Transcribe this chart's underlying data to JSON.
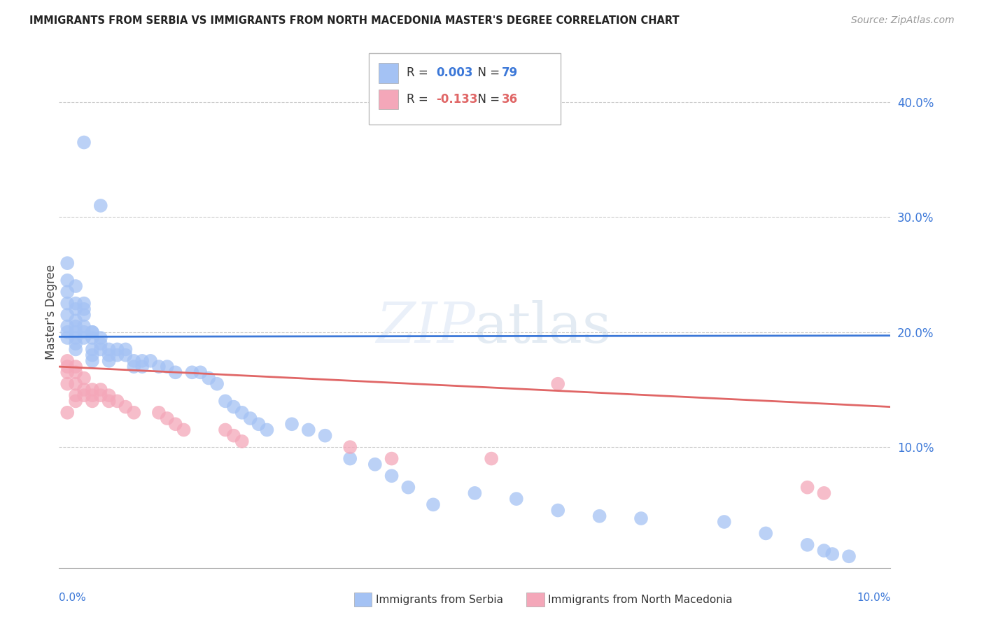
{
  "title": "IMMIGRANTS FROM SERBIA VS IMMIGRANTS FROM NORTH MACEDONIA MASTER'S DEGREE CORRELATION CHART",
  "source": "Source: ZipAtlas.com",
  "ylabel": "Master's Degree",
  "serbia_color": "#a4c2f4",
  "macedonia_color": "#f4a7b9",
  "serbia_line_color": "#3c78d8",
  "macedonia_line_color": "#e06666",
  "xlim": [
    0.0,
    0.1
  ],
  "ylim": [
    -0.005,
    0.44
  ],
  "ytick_vals": [
    0.1,
    0.2,
    0.3,
    0.4
  ],
  "ytick_labels": [
    "10.0%",
    "20.0%",
    "30.0%",
    "40.0%"
  ],
  "watermark_text": "ZIPatlas",
  "serbia_x": [
    0.003,
    0.005,
    0.001,
    0.001,
    0.001,
    0.001,
    0.001,
    0.001,
    0.001,
    0.001,
    0.002,
    0.002,
    0.002,
    0.002,
    0.002,
    0.002,
    0.002,
    0.002,
    0.002,
    0.003,
    0.003,
    0.003,
    0.003,
    0.003,
    0.003,
    0.004,
    0.004,
    0.004,
    0.004,
    0.004,
    0.004,
    0.005,
    0.005,
    0.005,
    0.006,
    0.006,
    0.006,
    0.007,
    0.007,
    0.008,
    0.008,
    0.009,
    0.009,
    0.01,
    0.01,
    0.011,
    0.012,
    0.013,
    0.014,
    0.016,
    0.017,
    0.018,
    0.019,
    0.02,
    0.021,
    0.022,
    0.023,
    0.024,
    0.025,
    0.028,
    0.03,
    0.032,
    0.035,
    0.038,
    0.04,
    0.042,
    0.045,
    0.05,
    0.055,
    0.06,
    0.065,
    0.07,
    0.08,
    0.085,
    0.09,
    0.092,
    0.093,
    0.095
  ],
  "serbia_y": [
    0.365,
    0.31,
    0.26,
    0.245,
    0.235,
    0.225,
    0.215,
    0.205,
    0.2,
    0.195,
    0.24,
    0.225,
    0.22,
    0.21,
    0.205,
    0.2,
    0.195,
    0.19,
    0.185,
    0.225,
    0.22,
    0.215,
    0.205,
    0.2,
    0.195,
    0.2,
    0.2,
    0.195,
    0.185,
    0.18,
    0.175,
    0.195,
    0.19,
    0.185,
    0.185,
    0.18,
    0.175,
    0.185,
    0.18,
    0.185,
    0.18,
    0.175,
    0.17,
    0.175,
    0.17,
    0.175,
    0.17,
    0.17,
    0.165,
    0.165,
    0.165,
    0.16,
    0.155,
    0.14,
    0.135,
    0.13,
    0.125,
    0.12,
    0.115,
    0.12,
    0.115,
    0.11,
    0.09,
    0.085,
    0.075,
    0.065,
    0.05,
    0.06,
    0.055,
    0.045,
    0.04,
    0.038,
    0.035,
    0.025,
    0.015,
    0.01,
    0.007,
    0.005
  ],
  "mace_x": [
    0.001,
    0.001,
    0.001,
    0.001,
    0.001,
    0.002,
    0.002,
    0.002,
    0.002,
    0.002,
    0.003,
    0.003,
    0.003,
    0.004,
    0.004,
    0.004,
    0.005,
    0.005,
    0.006,
    0.006,
    0.007,
    0.008,
    0.009,
    0.012,
    0.013,
    0.014,
    0.015,
    0.02,
    0.021,
    0.022,
    0.035,
    0.04,
    0.052,
    0.06,
    0.09,
    0.092
  ],
  "mace_y": [
    0.175,
    0.17,
    0.165,
    0.155,
    0.13,
    0.17,
    0.165,
    0.155,
    0.145,
    0.14,
    0.16,
    0.15,
    0.145,
    0.15,
    0.145,
    0.14,
    0.15,
    0.145,
    0.145,
    0.14,
    0.14,
    0.135,
    0.13,
    0.13,
    0.125,
    0.12,
    0.115,
    0.115,
    0.11,
    0.105,
    0.1,
    0.09,
    0.09,
    0.155,
    0.065,
    0.06
  ],
  "serbia_line_x": [
    0.0,
    0.1
  ],
  "serbia_line_y": [
    0.196,
    0.197
  ],
  "mace_line_x": [
    0.0,
    0.1
  ],
  "mace_line_y": [
    0.17,
    0.135
  ]
}
